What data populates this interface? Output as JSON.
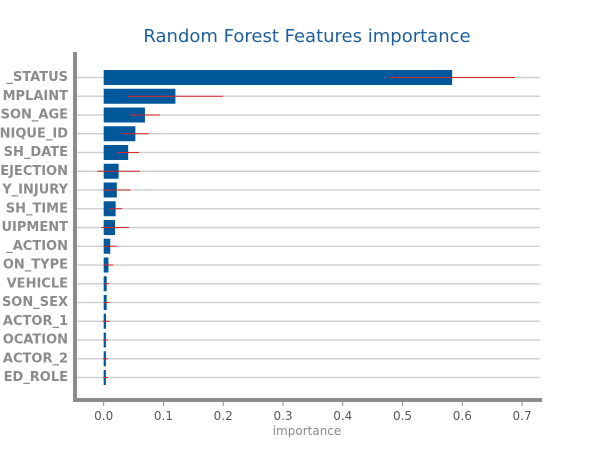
{
  "chart_data": {
    "type": "bar",
    "orientation": "horizontal",
    "title": "Random Forest Features importance",
    "xlabel": "importance",
    "ylabel": "",
    "xlim": [
      -0.048,
      0.73
    ],
    "x_ticks": [
      0.0,
      0.1,
      0.2,
      0.3,
      0.4,
      0.5,
      0.6,
      0.7
    ],
    "x_tick_labels": [
      "0.0",
      "0.1",
      "0.2",
      "0.3",
      "0.4",
      "0.5",
      "0.6",
      "0.7"
    ],
    "categories": [
      "_STATUS",
      "MPLAINT",
      "SON_AGE",
      "NIQUE_ID",
      "SH_DATE",
      "EJECTION",
      "Y_INJURY",
      "SH_TIME",
      "UIPMENT",
      "_ACTION",
      "ON_TYPE",
      "VEHICLE",
      "SON_SEX",
      "ACTOR_1",
      "OCATION",
      "ACTOR_2",
      "ED_ROLE"
    ],
    "values": [
      0.583,
      0.12,
      0.069,
      0.053,
      0.041,
      0.025,
      0.022,
      0.02,
      0.019,
      0.011,
      0.008,
      0.005,
      0.005,
      0.004,
      0.003,
      0.003,
      0.003
    ],
    "errors": [
      0.105,
      0.08,
      0.025,
      0.022,
      0.018,
      0.036,
      0.023,
      0.011,
      0.023,
      0.011,
      0.008,
      0.004,
      0.005,
      0.006,
      0.004,
      0.004,
      0.004
    ],
    "grid": "horizontal",
    "colors": {
      "bar": "#00579a",
      "error_bar": "#d62728",
      "grid": "#d0d0d0",
      "axis": "#8c8c8c",
      "title": "#1f5f9b",
      "tick_label": "#8c8c8c",
      "x_tick_label": "#595959"
    }
  }
}
